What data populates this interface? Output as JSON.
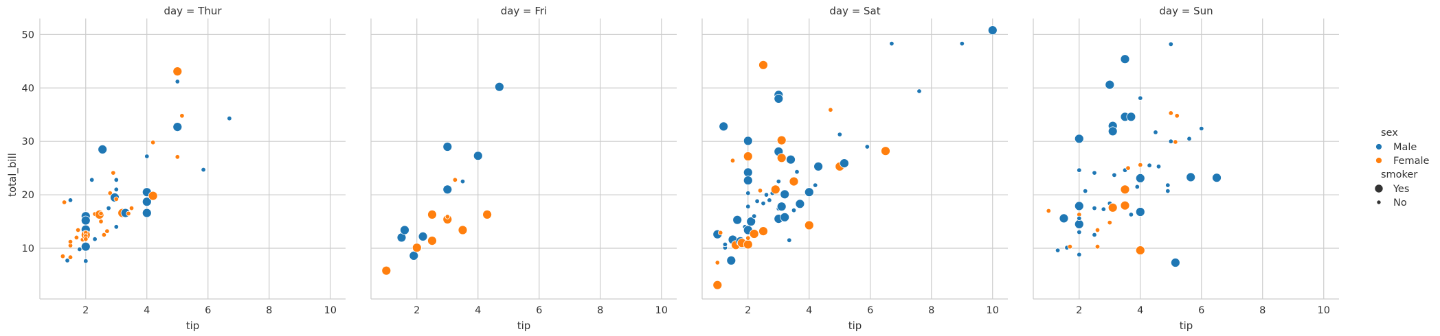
{
  "chart_data": {
    "type": "scatter",
    "facet_by": "day",
    "xlabel": "tip",
    "ylabel": "total_bill",
    "xlim": [
      0.5,
      10.5
    ],
    "ylim": [
      0.5,
      53
    ],
    "xticks": [
      "2",
      "4",
      "6",
      "8",
      "10"
    ],
    "yticks": [
      "10",
      "20",
      "30",
      "40",
      "50"
    ],
    "grid": true,
    "legend_position": "right",
    "colors": {
      "Male": "#1f77b4",
      "Female": "#ff7f0e"
    },
    "legend": {
      "hue_title": "sex",
      "hue_entries": [
        "Male",
        "Female"
      ],
      "size_title": "smoker",
      "size_entries": [
        "Yes",
        "No"
      ]
    },
    "panels": [
      {
        "title": "day = Thur",
        "points": [
          [
            1.25,
            8.5,
            "F",
            "N"
          ],
          [
            1.4,
            7.7,
            "M",
            "N"
          ],
          [
            1.3,
            18.6,
            "F",
            "N"
          ],
          [
            1.5,
            19.0,
            "M",
            "N"
          ],
          [
            1.5,
            10.5,
            "F",
            "N"
          ],
          [
            1.5,
            11.2,
            "F",
            "N"
          ],
          [
            1.5,
            8.3,
            "F",
            "N"
          ],
          [
            1.7,
            12.0,
            "F",
            "N"
          ],
          [
            1.75,
            13.4,
            "F",
            "N"
          ],
          [
            1.8,
            9.8,
            "M",
            "N"
          ],
          [
            1.9,
            11.6,
            "F",
            "N"
          ],
          [
            2.0,
            16.0,
            "M",
            "Y"
          ],
          [
            2.0,
            15.2,
            "M",
            "Y"
          ],
          [
            2.0,
            13.5,
            "M",
            "Y"
          ],
          [
            2.0,
            12.5,
            "F",
            "Y"
          ],
          [
            2.0,
            10.3,
            "M",
            "Y"
          ],
          [
            2.0,
            12.9,
            "F",
            "N"
          ],
          [
            2.0,
            7.6,
            "M",
            "N"
          ],
          [
            2.0,
            12.3,
            "F",
            "N"
          ],
          [
            2.0,
            11.7,
            "F",
            "N"
          ],
          [
            2.2,
            22.8,
            "M",
            "N"
          ],
          [
            2.3,
            11.7,
            "M",
            "N"
          ],
          [
            2.3,
            16.4,
            "F",
            "N"
          ],
          [
            2.45,
            16.3,
            "F",
            "Y"
          ],
          [
            2.5,
            16.5,
            "F",
            "N"
          ],
          [
            2.5,
            15.0,
            "F",
            "N"
          ],
          [
            2.55,
            28.5,
            "M",
            "Y"
          ],
          [
            2.6,
            12.5,
            "F",
            "N"
          ],
          [
            2.7,
            13.2,
            "F",
            "N"
          ],
          [
            2.75,
            17.5,
            "M",
            "N"
          ],
          [
            2.8,
            20.3,
            "F",
            "N"
          ],
          [
            2.9,
            24.1,
            "F",
            "N"
          ],
          [
            2.95,
            19.5,
            "M",
            "Y"
          ],
          [
            3.0,
            22.8,
            "M",
            "N"
          ],
          [
            3.0,
            21.0,
            "M",
            "N"
          ],
          [
            3.0,
            19.2,
            "F",
            "N"
          ],
          [
            3.0,
            14.0,
            "M",
            "N"
          ],
          [
            3.2,
            16.6,
            "F",
            "Y"
          ],
          [
            3.3,
            16.6,
            "M",
            "Y"
          ],
          [
            3.4,
            16.5,
            "F",
            "N"
          ],
          [
            3.5,
            17.5,
            "F",
            "N"
          ],
          [
            4.0,
            27.2,
            "M",
            "N"
          ],
          [
            4.0,
            20.5,
            "M",
            "Y"
          ],
          [
            4.0,
            18.7,
            "M",
            "Y"
          ],
          [
            4.0,
            16.6,
            "M",
            "Y"
          ],
          [
            4.2,
            19.8,
            "F",
            "Y"
          ],
          [
            4.2,
            29.8,
            "F",
            "N"
          ],
          [
            5.0,
            43.1,
            "F",
            "Y"
          ],
          [
            5.0,
            41.2,
            "M",
            "N"
          ],
          [
            5.0,
            32.7,
            "M",
            "Y"
          ],
          [
            5.0,
            27.1,
            "F",
            "N"
          ],
          [
            5.15,
            34.8,
            "F",
            "N"
          ],
          [
            5.85,
            24.7,
            "M",
            "N"
          ],
          [
            6.7,
            34.3,
            "M",
            "N"
          ]
        ]
      },
      {
        "title": "day = Fri",
        "points": [
          [
            1.0,
            5.8,
            "F",
            "Y"
          ],
          [
            1.5,
            12.0,
            "M",
            "Y"
          ],
          [
            1.6,
            13.4,
            "M",
            "Y"
          ],
          [
            1.9,
            8.6,
            "M",
            "Y"
          ],
          [
            2.0,
            10.1,
            "F",
            "Y"
          ],
          [
            2.2,
            12.2,
            "M",
            "Y"
          ],
          [
            2.5,
            16.3,
            "F",
            "Y"
          ],
          [
            2.5,
            11.4,
            "F",
            "Y"
          ],
          [
            3.0,
            29.0,
            "M",
            "Y"
          ],
          [
            3.0,
            21.0,
            "M",
            "Y"
          ],
          [
            3.0,
            15.4,
            "F",
            "Y"
          ],
          [
            3.0,
            15.9,
            "F",
            "N"
          ],
          [
            3.25,
            22.8,
            "F",
            "N"
          ],
          [
            3.5,
            13.4,
            "F",
            "Y"
          ],
          [
            3.5,
            22.5,
            "M",
            "N"
          ],
          [
            4.0,
            27.3,
            "M",
            "Y"
          ],
          [
            4.3,
            16.3,
            "F",
            "Y"
          ],
          [
            4.7,
            40.2,
            "M",
            "Y"
          ]
        ]
      },
      {
        "title": "day = Sat",
        "points": [
          [
            1.0,
            3.1,
            "F",
            "Y"
          ],
          [
            1.0,
            7.3,
            "F",
            "N"
          ],
          [
            1.0,
            12.6,
            "M",
            "Y"
          ],
          [
            1.1,
            12.9,
            "F",
            "N"
          ],
          [
            1.2,
            32.8,
            "M",
            "Y"
          ],
          [
            1.25,
            10.1,
            "M",
            "N"
          ],
          [
            1.25,
            10.7,
            "M",
            "N"
          ],
          [
            1.45,
            7.7,
            "M",
            "Y"
          ],
          [
            1.5,
            11.6,
            "M",
            "Y"
          ],
          [
            1.5,
            26.4,
            "F",
            "N"
          ],
          [
            1.6,
            10.6,
            "F",
            "Y"
          ],
          [
            1.65,
            15.3,
            "M",
            "Y"
          ],
          [
            1.75,
            11.3,
            "M",
            "Y"
          ],
          [
            1.8,
            11.0,
            "F",
            "Y"
          ],
          [
            1.9,
            14.0,
            "M",
            "N"
          ],
          [
            2.0,
            30.1,
            "M",
            "Y"
          ],
          [
            2.0,
            27.2,
            "F",
            "Y"
          ],
          [
            2.0,
            24.2,
            "M",
            "Y"
          ],
          [
            2.0,
            22.7,
            "M",
            "Y"
          ],
          [
            2.0,
            20.3,
            "M",
            "N"
          ],
          [
            2.0,
            17.8,
            "M",
            "N"
          ],
          [
            2.0,
            13.4,
            "M",
            "Y"
          ],
          [
            2.0,
            10.7,
            "F",
            "Y"
          ],
          [
            2.0,
            11.9,
            "F",
            "N"
          ],
          [
            2.1,
            15.0,
            "M",
            "Y"
          ],
          [
            2.2,
            12.7,
            "F",
            "Y"
          ],
          [
            2.2,
            16.0,
            "M",
            "N"
          ],
          [
            2.3,
            18.8,
            "M",
            "N"
          ],
          [
            2.4,
            20.8,
            "F",
            "N"
          ],
          [
            2.5,
            44.3,
            "F",
            "Y"
          ],
          [
            2.5,
            18.4,
            "M",
            "N"
          ],
          [
            2.5,
            13.2,
            "F",
            "Y"
          ],
          [
            2.6,
            20.0,
            "M",
            "N"
          ],
          [
            2.7,
            19.0,
            "M",
            "N"
          ],
          [
            2.8,
            20.3,
            "M",
            "N"
          ],
          [
            2.9,
            21.0,
            "F",
            "Y"
          ],
          [
            3.0,
            38.7,
            "M",
            "Y"
          ],
          [
            3.0,
            38.0,
            "M",
            "Y"
          ],
          [
            3.0,
            28.1,
            "M",
            "Y"
          ],
          [
            3.0,
            22.5,
            "M",
            "N"
          ],
          [
            3.0,
            15.5,
            "M",
            "Y"
          ],
          [
            3.0,
            17.4,
            "M",
            "N"
          ],
          [
            3.1,
            30.2,
            "F",
            "Y"
          ],
          [
            3.1,
            26.9,
            "F",
            "Y"
          ],
          [
            3.1,
            17.8,
            "M",
            "Y"
          ],
          [
            3.2,
            20.1,
            "M",
            "Y"
          ],
          [
            3.2,
            15.8,
            "M",
            "Y"
          ],
          [
            3.35,
            11.5,
            "M",
            "N"
          ],
          [
            3.4,
            26.6,
            "M",
            "Y"
          ],
          [
            3.5,
            22.5,
            "F",
            "Y"
          ],
          [
            3.5,
            17.1,
            "M",
            "N"
          ],
          [
            3.6,
            24.3,
            "M",
            "N"
          ],
          [
            3.7,
            18.3,
            "M",
            "Y"
          ],
          [
            4.0,
            20.5,
            "M",
            "Y"
          ],
          [
            4.0,
            14.3,
            "F",
            "Y"
          ],
          [
            4.2,
            21.8,
            "M",
            "N"
          ],
          [
            4.3,
            25.3,
            "M",
            "Y"
          ],
          [
            4.7,
            35.9,
            "F",
            "N"
          ],
          [
            5.0,
            31.3,
            "M",
            "N"
          ],
          [
            5.0,
            25.3,
            "F",
            "Y"
          ],
          [
            5.15,
            25.9,
            "M",
            "Y"
          ],
          [
            5.9,
            29.0,
            "M",
            "N"
          ],
          [
            6.5,
            28.2,
            "F",
            "Y"
          ],
          [
            6.7,
            48.3,
            "M",
            "N"
          ],
          [
            7.6,
            39.4,
            "M",
            "N"
          ],
          [
            9.0,
            48.3,
            "M",
            "N"
          ],
          [
            10.0,
            50.8,
            "M",
            "Y"
          ]
        ]
      },
      {
        "title": "day = Sun",
        "points": [
          [
            1.0,
            17.0,
            "F",
            "N"
          ],
          [
            1.3,
            9.6,
            "M",
            "N"
          ],
          [
            1.5,
            15.6,
            "M",
            "Y"
          ],
          [
            1.6,
            10.1,
            "M",
            "N"
          ],
          [
            1.7,
            10.3,
            "F",
            "N"
          ],
          [
            2.0,
            30.5,
            "M",
            "Y"
          ],
          [
            2.0,
            17.9,
            "M",
            "Y"
          ],
          [
            2.0,
            14.5,
            "M",
            "Y"
          ],
          [
            2.0,
            24.6,
            "M",
            "N"
          ],
          [
            2.0,
            16.3,
            "F",
            "N"
          ],
          [
            2.0,
            15.6,
            "M",
            "N"
          ],
          [
            2.0,
            13.0,
            "M",
            "N"
          ],
          [
            2.0,
            8.8,
            "M",
            "N"
          ],
          [
            2.2,
            20.7,
            "M",
            "N"
          ],
          [
            2.5,
            24.1,
            "M",
            "N"
          ],
          [
            2.5,
            17.5,
            "M",
            "N"
          ],
          [
            2.5,
            12.5,
            "M",
            "N"
          ],
          [
            2.6,
            10.3,
            "F",
            "N"
          ],
          [
            2.6,
            13.4,
            "F",
            "N"
          ],
          [
            2.8,
            17.3,
            "M",
            "N"
          ],
          [
            3.0,
            40.6,
            "M",
            "Y"
          ],
          [
            3.0,
            18.4,
            "M",
            "N"
          ],
          [
            3.0,
            14.8,
            "F",
            "N"
          ],
          [
            3.1,
            32.9,
            "M",
            "Y"
          ],
          [
            3.1,
            31.9,
            "M",
            "Y"
          ],
          [
            3.1,
            17.6,
            "F",
            "Y"
          ],
          [
            3.15,
            23.7,
            "M",
            "N"
          ],
          [
            3.5,
            45.4,
            "M",
            "Y"
          ],
          [
            3.5,
            34.6,
            "M",
            "Y"
          ],
          [
            3.5,
            21.0,
            "F",
            "Y"
          ],
          [
            3.5,
            18.0,
            "F",
            "Y"
          ],
          [
            3.5,
            24.6,
            "M",
            "N"
          ],
          [
            3.6,
            25.0,
            "F",
            "N"
          ],
          [
            3.7,
            34.6,
            "M",
            "Y"
          ],
          [
            3.7,
            16.3,
            "M",
            "N"
          ],
          [
            3.9,
            21.5,
            "M",
            "N"
          ],
          [
            4.0,
            38.1,
            "M",
            "N"
          ],
          [
            4.0,
            25.6,
            "F",
            "N"
          ],
          [
            4.0,
            23.1,
            "M",
            "Y"
          ],
          [
            4.0,
            16.8,
            "M",
            "Y"
          ],
          [
            4.0,
            9.6,
            "F",
            "Y"
          ],
          [
            4.3,
            25.5,
            "M",
            "N"
          ],
          [
            4.5,
            31.7,
            "M",
            "N"
          ],
          [
            4.6,
            25.3,
            "M",
            "N"
          ],
          [
            4.9,
            21.8,
            "M",
            "N"
          ],
          [
            4.9,
            20.7,
            "M",
            "N"
          ],
          [
            5.0,
            48.2,
            "M",
            "N"
          ],
          [
            5.0,
            35.3,
            "F",
            "N"
          ],
          [
            5.0,
            30.0,
            "M",
            "N"
          ],
          [
            5.15,
            29.9,
            "F",
            "N"
          ],
          [
            5.15,
            7.3,
            "M",
            "Y"
          ],
          [
            5.2,
            34.8,
            "F",
            "N"
          ],
          [
            5.6,
            30.5,
            "M",
            "N"
          ],
          [
            5.65,
            23.3,
            "M",
            "Y"
          ],
          [
            6.0,
            32.4,
            "M",
            "N"
          ],
          [
            6.5,
            23.2,
            "M",
            "Y"
          ]
        ]
      }
    ]
  }
}
